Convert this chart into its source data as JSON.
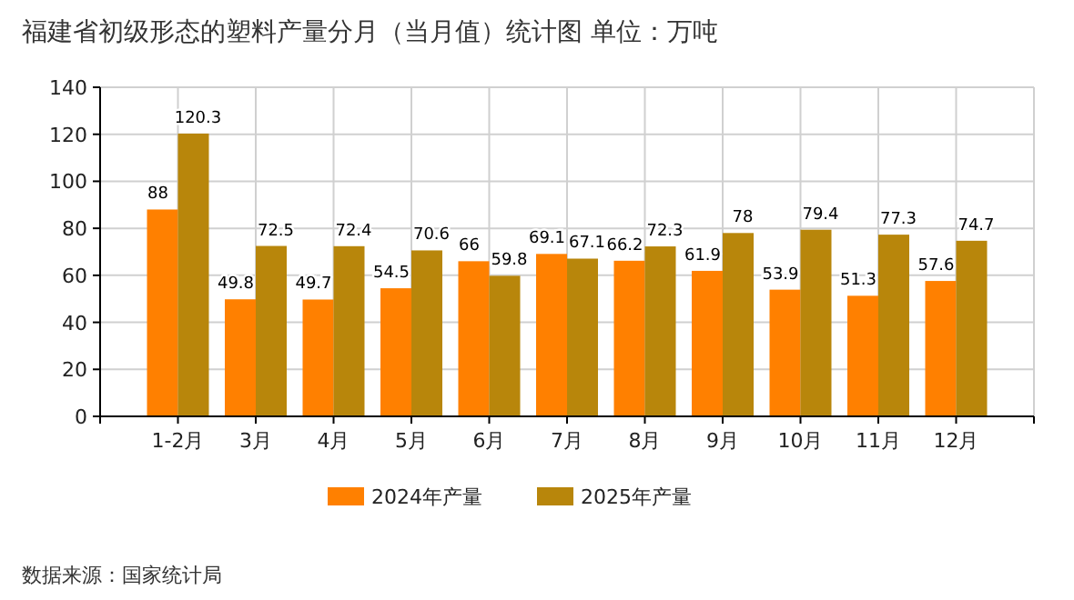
{
  "chart_data": {
    "type": "bar",
    "title": "福建省初级形态的塑料产量分月（当月值）统计图 单位：万吨",
    "categories": [
      "1-2月",
      "3月",
      "4月",
      "5月",
      "6月",
      "7月",
      "8月",
      "9月",
      "10月",
      "11月",
      "12月"
    ],
    "series": [
      {
        "name": "2024年产量",
        "color": "#ff8000",
        "values": [
          88,
          49.8,
          49.7,
          54.5,
          66,
          69.1,
          66.2,
          61.9,
          53.9,
          51.3,
          57.6
        ]
      },
      {
        "name": "2025年产量",
        "color": "#b8860b",
        "values": [
          120.3,
          72.5,
          72.4,
          70.6,
          59.8,
          67.1,
          72.3,
          78,
          79.4,
          77.3,
          74.7
        ]
      }
    ],
    "ylim": [
      0,
      140
    ],
    "yticks": [
      0,
      20,
      40,
      60,
      80,
      100,
      120,
      140
    ],
    "grid": true,
    "legend": "bottom",
    "data_labels": true,
    "annotations": [
      "数据来源：国家统计局"
    ]
  }
}
